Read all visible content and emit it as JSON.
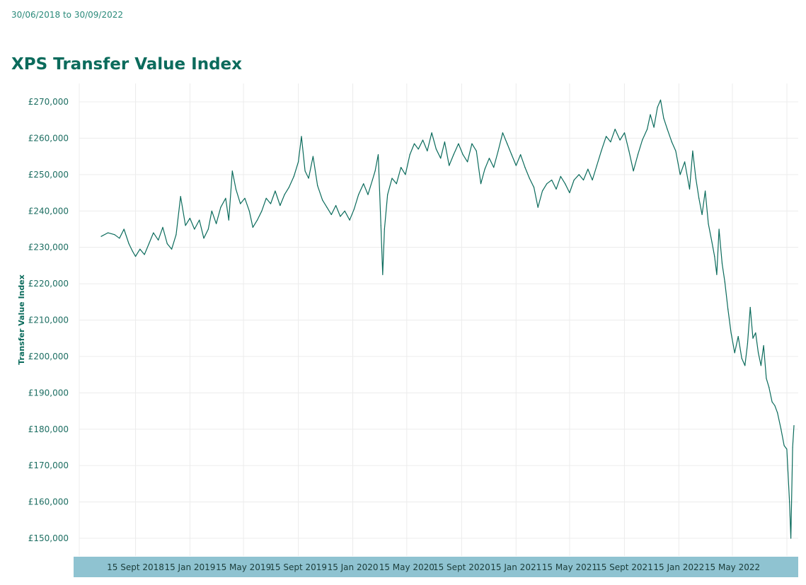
{
  "header": {
    "date_range": "30/06/2018 to 30/09/2022",
    "title": "XPS Transfer Value Index"
  },
  "colors": {
    "line": "#0b6b5c",
    "grid": "#ececec",
    "axis_band": "#8fc3d1",
    "text": "#0b6b5c"
  },
  "chart_data": {
    "type": "line",
    "title": "XPS Transfer Value Index",
    "ylabel": "Transfer Value Index",
    "xlabel": "",
    "ylim": [
      147000,
      275000
    ],
    "y_ticks": [
      150000,
      160000,
      170000,
      180000,
      190000,
      200000,
      210000,
      220000,
      230000,
      240000,
      250000,
      260000,
      270000
    ],
    "y_tick_labels": [
      "£150,000",
      "£160,000",
      "£170,000",
      "£180,000",
      "£190,000",
      "£200,000",
      "£210,000",
      "£220,000",
      "£230,000",
      "£240,000",
      "£250,000",
      "£260,000",
      "£270,000"
    ],
    "x_start": "2018-06-30",
    "x_end": "2022-09-30",
    "x_ticks": [
      "2018-09-15",
      "2019-01-15",
      "2019-05-15",
      "2019-09-15",
      "2020-01-15",
      "2020-05-15",
      "2020-09-15",
      "2021-01-15",
      "2021-05-15",
      "2021-09-15",
      "2022-01-15",
      "2022-05-15"
    ],
    "x_tick_labels": [
      "15 Sept 2018",
      "15 Jan 2019",
      "15 May 2019",
      "15 Sept 2019",
      "15 Jan 2020",
      "15 May 2020",
      "15 Sept 2020",
      "15 Jan 2021",
      "15 May 2021",
      "15 Sept 2021",
      "15 Jan 2022",
      "15 May 2022"
    ],
    "grid": true,
    "series": [
      {
        "name": "Transfer Value Index",
        "points": [
          [
            "2018-06-30",
            233000
          ],
          [
            "2018-07-15",
            234000
          ],
          [
            "2018-07-30",
            233500
          ],
          [
            "2018-08-10",
            232500
          ],
          [
            "2018-08-20",
            235000
          ],
          [
            "2018-08-31",
            231000
          ],
          [
            "2018-09-08",
            229000
          ],
          [
            "2018-09-15",
            227500
          ],
          [
            "2018-09-25",
            229500
          ],
          [
            "2018-10-05",
            228000
          ],
          [
            "2018-10-15",
            231000
          ],
          [
            "2018-10-25",
            234000
          ],
          [
            "2018-11-05",
            232000
          ],
          [
            "2018-11-15",
            235500
          ],
          [
            "2018-11-25",
            231000
          ],
          [
            "2018-12-05",
            229500
          ],
          [
            "2018-12-15",
            233500
          ],
          [
            "2018-12-25",
            244000
          ],
          [
            "2019-01-05",
            236000
          ],
          [
            "2019-01-15",
            238000
          ],
          [
            "2019-01-25",
            235000
          ],
          [
            "2019-02-05",
            237500
          ],
          [
            "2019-02-15",
            232500
          ],
          [
            "2019-02-25",
            235000
          ],
          [
            "2019-03-05",
            240000
          ],
          [
            "2019-03-15",
            236500
          ],
          [
            "2019-03-25",
            241000
          ],
          [
            "2019-04-05",
            243500
          ],
          [
            "2019-04-12",
            237500
          ],
          [
            "2019-04-20",
            251000
          ],
          [
            "2019-04-28",
            246000
          ],
          [
            "2019-05-08",
            242000
          ],
          [
            "2019-05-18",
            243500
          ],
          [
            "2019-05-28",
            240000
          ],
          [
            "2019-06-05",
            235500
          ],
          [
            "2019-06-15",
            237500
          ],
          [
            "2019-06-25",
            240000
          ],
          [
            "2019-07-05",
            243500
          ],
          [
            "2019-07-15",
            242000
          ],
          [
            "2019-07-25",
            245500
          ],
          [
            "2019-08-05",
            241500
          ],
          [
            "2019-08-15",
            244500
          ],
          [
            "2019-08-25",
            246500
          ],
          [
            "2019-09-05",
            249500
          ],
          [
            "2019-09-15",
            253500
          ],
          [
            "2019-09-22",
            260500
          ],
          [
            "2019-09-30",
            251000
          ],
          [
            "2019-10-08",
            249000
          ],
          [
            "2019-10-18",
            255000
          ],
          [
            "2019-10-28",
            247000
          ],
          [
            "2019-11-08",
            243000
          ],
          [
            "2019-11-18",
            241000
          ],
          [
            "2019-11-28",
            239000
          ],
          [
            "2019-12-08",
            241500
          ],
          [
            "2019-12-18",
            238500
          ],
          [
            "2019-12-28",
            240000
          ],
          [
            "2020-01-08",
            237500
          ],
          [
            "2020-01-18",
            240500
          ],
          [
            "2020-01-28",
            244500
          ],
          [
            "2020-02-08",
            247500
          ],
          [
            "2020-02-18",
            244500
          ],
          [
            "2020-02-28",
            248500
          ],
          [
            "2020-03-05",
            251000
          ],
          [
            "2020-03-12",
            255500
          ],
          [
            "2020-03-18",
            236000
          ],
          [
            "2020-03-22",
            222500
          ],
          [
            "2020-03-26",
            235000
          ],
          [
            "2020-04-02",
            244500
          ],
          [
            "2020-04-12",
            249000
          ],
          [
            "2020-04-22",
            247500
          ],
          [
            "2020-05-02",
            252000
          ],
          [
            "2020-05-12",
            250000
          ],
          [
            "2020-05-22",
            255500
          ],
          [
            "2020-06-01",
            258500
          ],
          [
            "2020-06-10",
            257000
          ],
          [
            "2020-06-20",
            259500
          ],
          [
            "2020-06-30",
            256500
          ],
          [
            "2020-07-10",
            261500
          ],
          [
            "2020-07-20",
            257000
          ],
          [
            "2020-07-30",
            254500
          ],
          [
            "2020-08-08",
            259000
          ],
          [
            "2020-08-18",
            252500
          ],
          [
            "2020-08-28",
            255500
          ],
          [
            "2020-09-08",
            258500
          ],
          [
            "2020-09-18",
            255500
          ],
          [
            "2020-09-28",
            253500
          ],
          [
            "2020-10-08",
            258500
          ],
          [
            "2020-10-18",
            256500
          ],
          [
            "2020-10-28",
            247500
          ],
          [
            "2020-11-06",
            251500
          ],
          [
            "2020-11-16",
            254500
          ],
          [
            "2020-11-26",
            252000
          ],
          [
            "2020-12-06",
            256500
          ],
          [
            "2020-12-16",
            261500
          ],
          [
            "2020-12-26",
            258500
          ],
          [
            "2021-01-05",
            255500
          ],
          [
            "2021-01-15",
            252500
          ],
          [
            "2021-01-25",
            255500
          ],
          [
            "2021-02-04",
            252000
          ],
          [
            "2021-02-14",
            249000
          ],
          [
            "2021-02-24",
            246500
          ],
          [
            "2021-03-05",
            241000
          ],
          [
            "2021-03-15",
            245500
          ],
          [
            "2021-03-25",
            247500
          ],
          [
            "2021-04-05",
            248500
          ],
          [
            "2021-04-15",
            246000
          ],
          [
            "2021-04-25",
            249500
          ],
          [
            "2021-05-05",
            247500
          ],
          [
            "2021-05-15",
            245000
          ],
          [
            "2021-05-25",
            248500
          ],
          [
            "2021-06-05",
            250000
          ],
          [
            "2021-06-15",
            248500
          ],
          [
            "2021-06-25",
            251500
          ],
          [
            "2021-07-05",
            248500
          ],
          [
            "2021-07-15",
            252500
          ],
          [
            "2021-07-25",
            256500
          ],
          [
            "2021-08-05",
            260500
          ],
          [
            "2021-08-15",
            259000
          ],
          [
            "2021-08-25",
            262500
          ],
          [
            "2021-09-05",
            259500
          ],
          [
            "2021-09-15",
            261500
          ],
          [
            "2021-09-25",
            256500
          ],
          [
            "2021-10-05",
            251000
          ],
          [
            "2021-10-15",
            255500
          ],
          [
            "2021-10-25",
            259500
          ],
          [
            "2021-11-05",
            262500
          ],
          [
            "2021-11-12",
            266500
          ],
          [
            "2021-11-20",
            263000
          ],
          [
            "2021-11-28",
            268500
          ],
          [
            "2021-12-05",
            270500
          ],
          [
            "2021-12-12",
            265500
          ],
          [
            "2021-12-20",
            262500
          ],
          [
            "2021-12-30",
            259000
          ],
          [
            "2022-01-08",
            256500
          ],
          [
            "2022-01-18",
            250000
          ],
          [
            "2022-01-28",
            253500
          ],
          [
            "2022-02-08",
            246000
          ],
          [
            "2022-02-15",
            256500
          ],
          [
            "2022-02-22",
            249000
          ],
          [
            "2022-03-01",
            243500
          ],
          [
            "2022-03-08",
            239000
          ],
          [
            "2022-03-15",
            245500
          ],
          [
            "2022-03-22",
            236500
          ],
          [
            "2022-03-30",
            231500
          ],
          [
            "2022-04-05",
            227500
          ],
          [
            "2022-04-10",
            222500
          ],
          [
            "2022-04-15",
            235000
          ],
          [
            "2022-04-22",
            225500
          ],
          [
            "2022-04-28",
            220500
          ],
          [
            "2022-05-05",
            213000
          ],
          [
            "2022-05-12",
            206500
          ],
          [
            "2022-05-20",
            201000
          ],
          [
            "2022-05-28",
            205500
          ],
          [
            "2022-06-05",
            199500
          ],
          [
            "2022-06-12",
            197500
          ],
          [
            "2022-06-18",
            203500
          ],
          [
            "2022-06-24",
            213500
          ],
          [
            "2022-06-30",
            205000
          ],
          [
            "2022-07-06",
            206500
          ],
          [
            "2022-07-12",
            201000
          ],
          [
            "2022-07-18",
            197500
          ],
          [
            "2022-07-24",
            203000
          ],
          [
            "2022-07-30",
            194000
          ],
          [
            "2022-08-05",
            191500
          ],
          [
            "2022-08-12",
            187500
          ],
          [
            "2022-08-18",
            186500
          ],
          [
            "2022-08-24",
            184500
          ],
          [
            "2022-09-01",
            180000
          ],
          [
            "2022-09-08",
            175500
          ],
          [
            "2022-09-14",
            174500
          ],
          [
            "2022-09-20",
            160000
          ],
          [
            "2022-09-23",
            150000
          ],
          [
            "2022-09-27",
            175000
          ],
          [
            "2022-09-30",
            181000
          ]
        ]
      }
    ]
  }
}
